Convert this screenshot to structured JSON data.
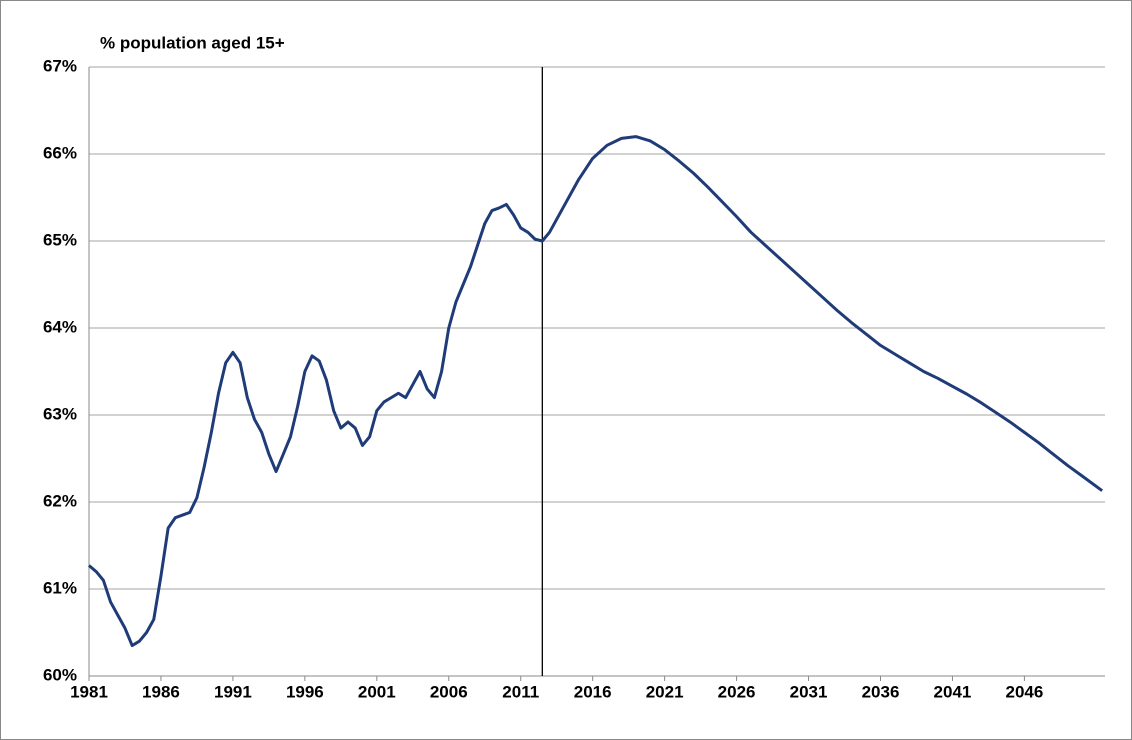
{
  "chart_data": {
    "type": "line",
    "title": "% population aged 15+",
    "x": [
      1981,
      1981.5,
      1982,
      1982.5,
      1983,
      1983.5,
      1984,
      1984.5,
      1985,
      1985.5,
      1986,
      1986.5,
      1987,
      1987.5,
      1988,
      1988.5,
      1989,
      1989.5,
      1990,
      1990.5,
      1991,
      1991.5,
      1992,
      1992.5,
      1993,
      1993.5,
      1994,
      1994.5,
      1995,
      1995.5,
      1996,
      1996.5,
      1997,
      1997.5,
      1998,
      1998.5,
      1999,
      1999.5,
      2000,
      2000.5,
      2001,
      2001.5,
      2002,
      2002.5,
      2003,
      2003.5,
      2004,
      2004.5,
      2005,
      2005.5,
      2006,
      2006.5,
      2007,
      2007.5,
      2008,
      2008.5,
      2009,
      2009.5,
      2010,
      2010.5,
      2011,
      2011.5,
      2012,
      2012.5,
      2013,
      2014,
      2015,
      2016,
      2017,
      2018,
      2019,
      2020,
      2021,
      2022,
      2023,
      2024,
      2025,
      2026,
      2027,
      2028,
      2029,
      2030,
      2031,
      2032,
      2033,
      2034,
      2035,
      2036,
      2037,
      2038,
      2039,
      2040,
      2041,
      2042,
      2043,
      2044,
      2045,
      2046,
      2047,
      2048,
      2049,
      2050,
      2051.4
    ],
    "series": [
      {
        "name": "% population aged 15+",
        "color": "#1f3b78",
        "values": [
          61.27,
          61.2,
          61.1,
          60.85,
          60.7,
          60.55,
          60.35,
          60.4,
          60.5,
          60.65,
          61.15,
          61.7,
          61.82,
          61.85,
          61.88,
          62.05,
          62.4,
          62.8,
          63.25,
          63.6,
          63.72,
          63.6,
          63.2,
          62.95,
          62.8,
          62.55,
          62.35,
          62.55,
          62.75,
          63.1,
          63.5,
          63.68,
          63.62,
          63.4,
          63.05,
          62.85,
          62.92,
          62.85,
          62.65,
          62.75,
          63.05,
          63.15,
          63.2,
          63.25,
          63.2,
          63.35,
          63.5,
          63.3,
          63.2,
          63.5,
          64.0,
          64.3,
          64.5,
          64.7,
          64.95,
          65.2,
          65.35,
          65.38,
          65.42,
          65.3,
          65.15,
          65.1,
          65.02,
          65.0,
          65.1,
          65.4,
          65.7,
          65.95,
          66.1,
          66.18,
          66.2,
          66.15,
          66.05,
          65.92,
          65.78,
          65.62,
          65.45,
          65.28,
          65.1,
          64.95,
          64.8,
          64.65,
          64.5,
          64.35,
          64.2,
          64.06,
          63.93,
          63.8,
          63.7,
          63.6,
          63.5,
          63.42,
          63.33,
          63.24,
          63.14,
          63.03,
          62.92,
          62.8,
          62.68,
          62.55,
          62.42,
          62.3,
          62.13
        ]
      }
    ],
    "xlim": [
      1981,
      2051.6
    ],
    "xticks": [
      1981,
      1986,
      1991,
      1996,
      2001,
      2006,
      2011,
      2016,
      2021,
      2026,
      2031,
      2036,
      2041,
      2046
    ],
    "ylim": [
      60,
      67
    ],
    "yticks": [
      {
        "value": 60,
        "label": "60%"
      },
      {
        "value": 61,
        "label": "61%"
      },
      {
        "value": 62,
        "label": "62%"
      },
      {
        "value": 63,
        "label": "63%"
      },
      {
        "value": 64,
        "label": "64%"
      },
      {
        "value": 65,
        "label": "65%"
      },
      {
        "value": 66,
        "label": "66%"
      },
      {
        "value": 67,
        "label": "67%"
      }
    ],
    "vline": 2012.5,
    "grid": true
  }
}
